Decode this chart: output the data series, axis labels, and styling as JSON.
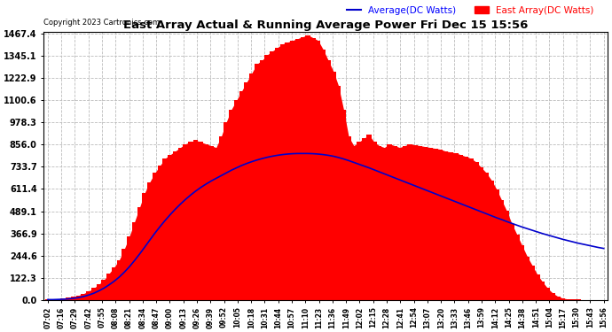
{
  "title": "East Array Actual & Running Average Power Fri Dec 15 15:56",
  "copyright": "Copyright 2023 Cartronics.com",
  "legend_avg": "Average(DC Watts)",
  "legend_east": "East Array(DC Watts)",
  "background_color": "#ffffff",
  "plot_bg_color": "#ffffff",
  "grid_color": "#bbbbbb",
  "bar_color": "#ff0000",
  "line_color": "#0000cc",
  "yticks": [
    0.0,
    122.3,
    244.6,
    366.9,
    489.1,
    611.4,
    733.7,
    856.0,
    978.3,
    1100.6,
    1222.9,
    1345.1,
    1467.4
  ],
  "ymax": 1467.4,
  "time_labels": [
    "07:02",
    "07:16",
    "07:29",
    "07:42",
    "07:55",
    "08:08",
    "08:21",
    "08:34",
    "08:47",
    "09:00",
    "09:13",
    "09:26",
    "09:39",
    "09:52",
    "10:05",
    "10:18",
    "10:31",
    "10:44",
    "10:57",
    "11:10",
    "11:23",
    "11:36",
    "11:49",
    "12:02",
    "12:15",
    "12:28",
    "12:41",
    "12:54",
    "13:07",
    "13:20",
    "13:33",
    "13:46",
    "13:59",
    "14:12",
    "14:25",
    "14:38",
    "14:51",
    "15:04",
    "15:17",
    "15:30",
    "15:43",
    "15:56"
  ],
  "n_points": 110,
  "east_values": [
    2,
    3,
    5,
    8,
    12,
    18,
    25,
    35,
    48,
    65,
    85,
    110,
    145,
    180,
    220,
    280,
    350,
    430,
    510,
    590,
    650,
    700,
    740,
    780,
    800,
    820,
    840,
    860,
    870,
    880,
    870,
    860,
    850,
    840,
    900,
    980,
    1050,
    1100,
    1150,
    1200,
    1250,
    1300,
    1320,
    1350,
    1370,
    1390,
    1410,
    1420,
    1430,
    1440,
    1450,
    1460,
    1445,
    1430,
    1380,
    1320,
    1260,
    1180,
    1050,
    900,
    850,
    870,
    890,
    910,
    870,
    850,
    840,
    860,
    850,
    840,
    850,
    860,
    855,
    850,
    845,
    840,
    835,
    830,
    820,
    815,
    810,
    800,
    790,
    780,
    760,
    730,
    700,
    660,
    610,
    550,
    490,
    420,
    360,
    300,
    240,
    190,
    140,
    100,
    65,
    38,
    20,
    10,
    5,
    3,
    2,
    1,
    1,
    1,
    1,
    1
  ],
  "avg_values": [
    2,
    2,
    3,
    4,
    6,
    9,
    13,
    19,
    27,
    37,
    50,
    65,
    83,
    103,
    126,
    153,
    183,
    217,
    253,
    291,
    330,
    368,
    404,
    438,
    470,
    500,
    528,
    554,
    578,
    600,
    620,
    638,
    655,
    670,
    685,
    700,
    715,
    728,
    741,
    752,
    762,
    771,
    779,
    786,
    792,
    797,
    801,
    804,
    806,
    807,
    807,
    807,
    806,
    804,
    801,
    797,
    792,
    785,
    777,
    768,
    758,
    748,
    738,
    728,
    717,
    706,
    695,
    684,
    673,
    662,
    651,
    640,
    629,
    618,
    607,
    596,
    585,
    574,
    563,
    552,
    541,
    530,
    519,
    508,
    497,
    486,
    475,
    464,
    453,
    443,
    432,
    422,
    412,
    402,
    393,
    384,
    375,
    366,
    358,
    350,
    342,
    334,
    327,
    320,
    313,
    307,
    301,
    295,
    289,
    284
  ]
}
